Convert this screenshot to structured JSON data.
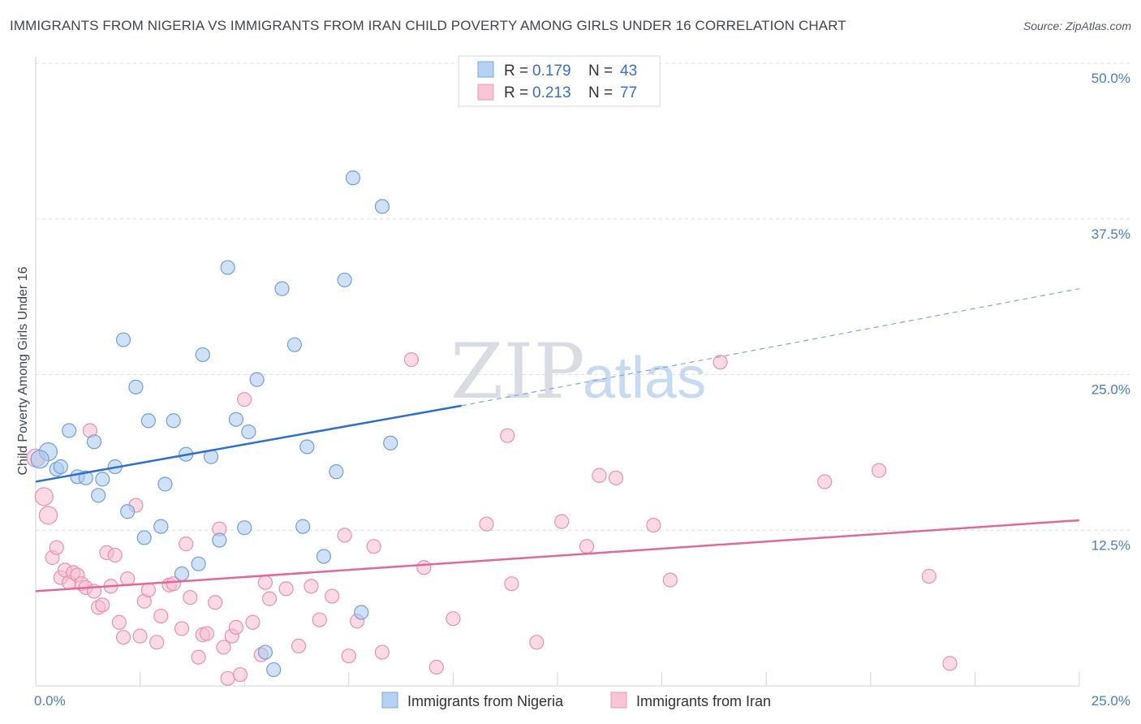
{
  "title": "IMMIGRANTS FROM NIGERIA VS IMMIGRANTS FROM IRAN CHILD POVERTY AMONG GIRLS UNDER 16 CORRELATION CHART",
  "source": "Source: ZipAtlas.com",
  "watermark": {
    "zip": "ZIP",
    "atlas": "atlas"
  },
  "chart_data": {
    "type": "scatter",
    "title": "IMMIGRANTS FROM NIGERIA VS IMMIGRANTS FROM IRAN CHILD POVERTY AMONG GIRLS UNDER 16 CORRELATION CHART",
    "xlabel": "",
    "ylabel": "Child Poverty Among Girls Under 16",
    "xlim": [
      0,
      25
    ],
    "ylim": [
      0,
      50
    ],
    "x_tick_labels": [
      "0.0%",
      "25.0%"
    ],
    "y_ticks": [
      12.5,
      25.0,
      37.5,
      50.0
    ],
    "y_tick_labels": [
      "12.5%",
      "25.0%",
      "37.5%",
      "50.0%"
    ],
    "grid": "horizontal dashed",
    "legend_placement": "top-center",
    "legend": [
      {
        "r_label": "R =",
        "r_value": "0.179",
        "n_label": "N =",
        "n_value": "43"
      },
      {
        "r_label": "R =",
        "r_value": "0.213",
        "n_label": "N =",
        "n_value": "77"
      }
    ],
    "series": [
      {
        "name": "Immigrants from Nigeria",
        "color": "#a9c8ef",
        "edge_color": "#6f9fdc",
        "trend_color": "#2f6fcc",
        "trend": {
          "x0": 0,
          "y0": 16.4,
          "x1": 10.2,
          "y1": 22.5,
          "x_dash_end": 25,
          "y_dash_end": 31.9
        },
        "points": [
          [
            0.3,
            18.8
          ],
          [
            0.1,
            18.2
          ],
          [
            0.5,
            17.4
          ],
          [
            0.8,
            20.5
          ],
          [
            0.6,
            17.6
          ],
          [
            1.0,
            16.8
          ],
          [
            1.2,
            16.7
          ],
          [
            1.4,
            19.6
          ],
          [
            1.6,
            16.6
          ],
          [
            1.5,
            15.3
          ],
          [
            1.9,
            17.6
          ],
          [
            2.1,
            27.8
          ],
          [
            2.2,
            14.0
          ],
          [
            2.4,
            24.0
          ],
          [
            2.6,
            11.9
          ],
          [
            2.7,
            21.3
          ],
          [
            3.0,
            12.8
          ],
          [
            3.1,
            16.2
          ],
          [
            3.3,
            21.3
          ],
          [
            3.5,
            9.0
          ],
          [
            3.6,
            18.6
          ],
          [
            3.9,
            9.8
          ],
          [
            4.0,
            26.6
          ],
          [
            4.2,
            18.4
          ],
          [
            4.4,
            11.7
          ],
          [
            4.6,
            33.6
          ],
          [
            4.8,
            21.4
          ],
          [
            5.0,
            12.7
          ],
          [
            5.1,
            20.4
          ],
          [
            5.3,
            24.6
          ],
          [
            5.5,
            2.7
          ],
          [
            5.7,
            1.3
          ],
          [
            5.9,
            31.9
          ],
          [
            6.2,
            27.4
          ],
          [
            6.4,
            12.8
          ],
          [
            6.5,
            19.2
          ],
          [
            6.9,
            10.4
          ],
          [
            7.2,
            17.2
          ],
          [
            7.4,
            32.6
          ],
          [
            7.8,
            5.9
          ],
          [
            7.6,
            40.8
          ],
          [
            8.3,
            38.5
          ],
          [
            8.5,
            19.5
          ]
        ]
      },
      {
        "name": "Immigrants from Iran",
        "color": "#f6bcd0",
        "edge_color": "#e990ad",
        "trend_color": "#e0699a",
        "trend": {
          "x0": 0,
          "y0": 7.6,
          "x1": 25,
          "y1": 13.3
        },
        "points": [
          [
            0.0,
            18.3
          ],
          [
            0.2,
            15.2
          ],
          [
            0.3,
            13.7
          ],
          [
            0.4,
            10.3
          ],
          [
            0.5,
            11.1
          ],
          [
            0.6,
            8.7
          ],
          [
            0.7,
            9.3
          ],
          [
            0.8,
            8.3
          ],
          [
            0.9,
            9.1
          ],
          [
            1.0,
            8.9
          ],
          [
            1.1,
            8.2
          ],
          [
            1.2,
            7.9
          ],
          [
            1.3,
            20.5
          ],
          [
            1.4,
            7.6
          ],
          [
            1.5,
            6.3
          ],
          [
            1.6,
            6.5
          ],
          [
            1.7,
            10.7
          ],
          [
            1.8,
            8.0
          ],
          [
            1.9,
            10.5
          ],
          [
            2.0,
            5.1
          ],
          [
            2.1,
            3.9
          ],
          [
            2.2,
            8.6
          ],
          [
            2.4,
            14.5
          ],
          [
            2.5,
            4.0
          ],
          [
            2.6,
            6.8
          ],
          [
            2.7,
            7.7
          ],
          [
            2.9,
            3.5
          ],
          [
            3.0,
            5.6
          ],
          [
            3.2,
            8.1
          ],
          [
            3.3,
            8.2
          ],
          [
            3.5,
            4.6
          ],
          [
            3.6,
            11.4
          ],
          [
            3.7,
            7.1
          ],
          [
            3.9,
            2.3
          ],
          [
            4.0,
            4.1
          ],
          [
            4.1,
            4.2
          ],
          [
            4.3,
            6.7
          ],
          [
            4.4,
            12.6
          ],
          [
            4.5,
            3.1
          ],
          [
            4.6,
            0.6
          ],
          [
            4.7,
            4.0
          ],
          [
            4.8,
            4.7
          ],
          [
            4.9,
            0.9
          ],
          [
            5.0,
            23.0
          ],
          [
            5.2,
            5.1
          ],
          [
            5.4,
            2.5
          ],
          [
            5.5,
            8.3
          ],
          [
            5.6,
            7.0
          ],
          [
            6.0,
            7.8
          ],
          [
            6.3,
            3.2
          ],
          [
            6.6,
            8.0
          ],
          [
            6.8,
            5.3
          ],
          [
            7.1,
            7.2
          ],
          [
            7.5,
            2.4
          ],
          [
            7.7,
            5.2
          ],
          [
            7.4,
            12.1
          ],
          [
            8.1,
            11.2
          ],
          [
            8.3,
            2.7
          ],
          [
            9.0,
            26.2
          ],
          [
            9.3,
            9.5
          ],
          [
            9.6,
            1.5
          ],
          [
            10.0,
            5.4
          ],
          [
            10.8,
            13.0
          ],
          [
            11.4,
            8.2
          ],
          [
            11.3,
            20.1
          ],
          [
            12.0,
            3.5
          ],
          [
            12.6,
            13.2
          ],
          [
            13.2,
            11.2
          ],
          [
            13.5,
            16.9
          ],
          [
            13.9,
            16.7
          ],
          [
            14.8,
            12.9
          ],
          [
            15.2,
            8.5
          ],
          [
            16.4,
            26.0
          ],
          [
            18.9,
            16.4
          ],
          [
            20.2,
            17.3
          ],
          [
            21.4,
            8.8
          ],
          [
            21.9,
            1.8
          ]
        ]
      }
    ]
  }
}
